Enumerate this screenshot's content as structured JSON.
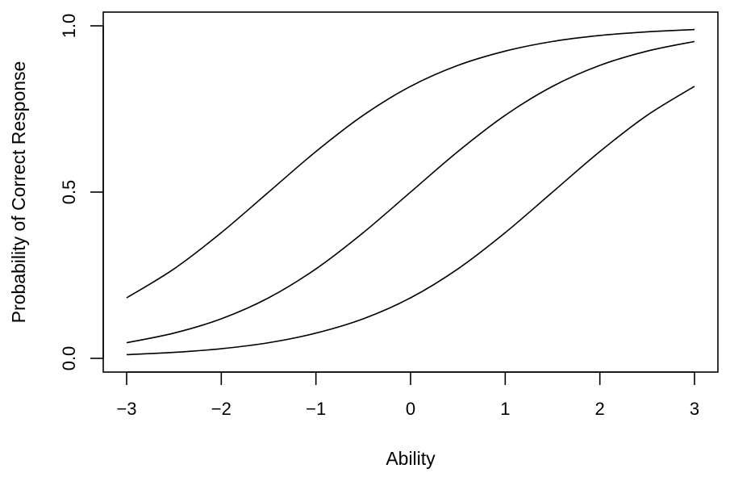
{
  "chart_data": {
    "type": "line",
    "title": "",
    "xlabel": "Ability",
    "ylabel": "Probability of Correct Response",
    "xlim": [
      -3,
      3
    ],
    "ylim": [
      0,
      1
    ],
    "x_ticks": [
      -3,
      -2,
      -1,
      0,
      1,
      2,
      3
    ],
    "x_tick_labels": [
      "−3",
      "−2",
      "−1",
      "0",
      "1",
      "2",
      "3"
    ],
    "y_ticks": [
      0,
      0.5,
      1
    ],
    "y_tick_labels": [
      "0.0",
      "0.5",
      "1.0"
    ],
    "grid": false,
    "legend": "none",
    "line_color": "#000000",
    "x": [
      -3,
      -2.5,
      -2,
      -1.5,
      -1,
      -0.5,
      0,
      0.5,
      1,
      1.5,
      2,
      2.5,
      3
    ],
    "series": [
      {
        "values": [
          0.182,
          0.269,
          0.378,
          0.5,
          0.622,
          0.731,
          0.818,
          0.881,
          0.924,
          0.953,
          0.971,
          0.982,
          0.989
        ]
      },
      {
        "values": [
          0.047,
          0.076,
          0.119,
          0.182,
          0.269,
          0.378,
          0.5,
          0.622,
          0.731,
          0.818,
          0.881,
          0.924,
          0.953
        ]
      },
      {
        "values": [
          0.011,
          0.018,
          0.029,
          0.047,
          0.076,
          0.119,
          0.182,
          0.269,
          0.378,
          0.5,
          0.622,
          0.731,
          0.818
        ]
      }
    ]
  }
}
